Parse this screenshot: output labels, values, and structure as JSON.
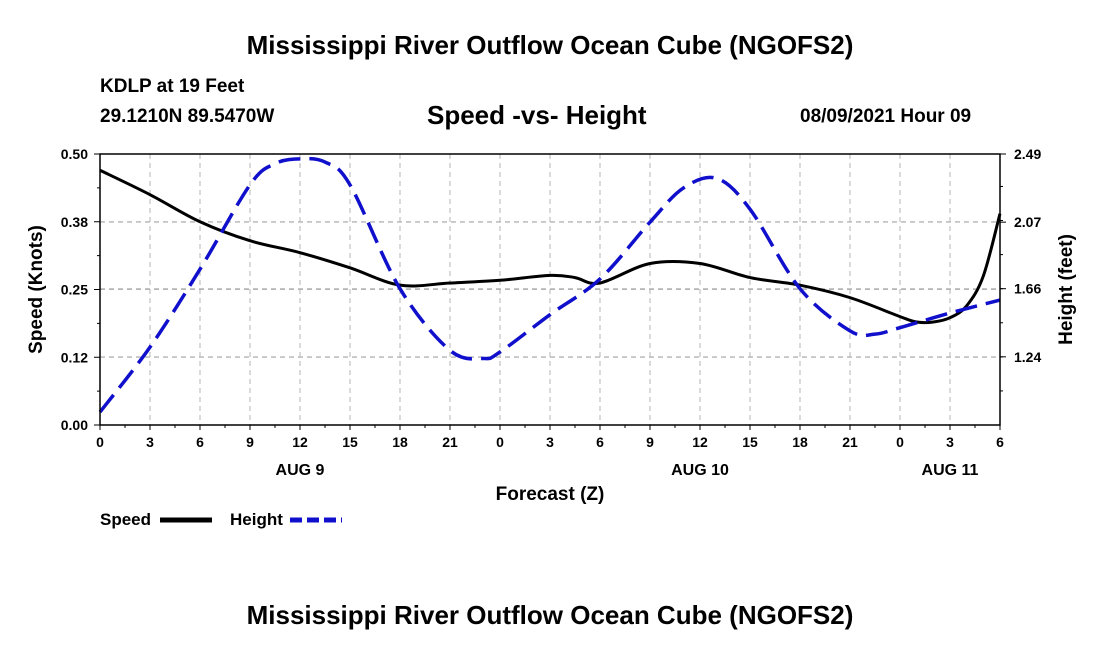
{
  "header": {
    "title": "Mississippi River Outflow Ocean Cube (NGOFS2)",
    "station": "KDLP at 19 Feet",
    "coords": "29.1210N  89.5470W",
    "subtitle": "Speed -vs- Height",
    "datetime": "08/09/2021 Hour 09"
  },
  "footer": {
    "title": "Mississippi River Outflow Ocean Cube (NGOFS2)"
  },
  "legend": {
    "speed_label": "Speed",
    "height_label": "Height"
  },
  "colors": {
    "speed": "#000000",
    "height": "#1010cc",
    "grid": "#b4b4b4"
  },
  "chart_data": {
    "type": "line",
    "title": "Speed -vs- Height",
    "xlabel": "Forecast (Z)",
    "ylabel": "Speed (Knots)",
    "y2label": "Height (feet)",
    "xlim": [
      0,
      54
    ],
    "ylim": [
      0,
      0.5
    ],
    "y2lim": [
      0.82,
      2.49
    ],
    "x_ticks": [
      0,
      3,
      6,
      9,
      12,
      15,
      18,
      21,
      24,
      27,
      30,
      33,
      36,
      39,
      42,
      45,
      48,
      51,
      54
    ],
    "x_tick_labels": [
      "0",
      "3",
      "6",
      "9",
      "12",
      "15",
      "18",
      "21",
      "0",
      "3",
      "6",
      "9",
      "12",
      "15",
      "18",
      "21",
      "0",
      "3",
      "6"
    ],
    "day_labels": [
      {
        "x": 12,
        "label": "AUG 9"
      },
      {
        "x": 36,
        "label": "AUG 10"
      },
      {
        "x": 51,
        "label": "AUG 11"
      }
    ],
    "y_ticks": [
      0,
      0.125,
      0.25,
      0.375,
      0.5
    ],
    "y_tick_labels": [
      "0.00",
      "0.12",
      "0.25",
      "0.38",
      "0.50"
    ],
    "y2_ticks": [
      1.24,
      1.66,
      2.07,
      2.49
    ],
    "y2_tick_labels": [
      "1.24",
      "1.66",
      "2.07",
      "2.49"
    ],
    "grid": true,
    "legend_position": "bottom-left",
    "series": [
      {
        "name": "Speed",
        "axis": "left",
        "style": "solid",
        "x": [
          0,
          3,
          6,
          9,
          12,
          15,
          18,
          21,
          24,
          27,
          28.5,
          30,
          33,
          36,
          39,
          42,
          45,
          48,
          49,
          50,
          51,
          52,
          53,
          54
        ],
        "values": [
          0.47,
          0.425,
          0.375,
          0.34,
          0.318,
          0.29,
          0.258,
          0.262,
          0.267,
          0.276,
          0.272,
          0.262,
          0.298,
          0.298,
          0.272,
          0.258,
          0.235,
          0.2,
          0.19,
          0.19,
          0.198,
          0.22,
          0.275,
          0.39
        ]
      },
      {
        "name": "Height",
        "axis": "right",
        "style": "dashed",
        "x": [
          0,
          3,
          6,
          9,
          10.5,
          12,
          13.5,
          15,
          18,
          21,
          23,
          24,
          27,
          30,
          33,
          35,
          37,
          39,
          42,
          45,
          46.5,
          48,
          51,
          54
        ],
        "values": [
          0.9,
          1.3,
          1.78,
          2.3,
          2.43,
          2.46,
          2.44,
          2.3,
          1.66,
          1.28,
          1.23,
          1.27,
          1.5,
          1.72,
          2.07,
          2.28,
          2.34,
          2.15,
          1.66,
          1.4,
          1.38,
          1.42,
          1.51,
          1.59
        ]
      }
    ]
  }
}
